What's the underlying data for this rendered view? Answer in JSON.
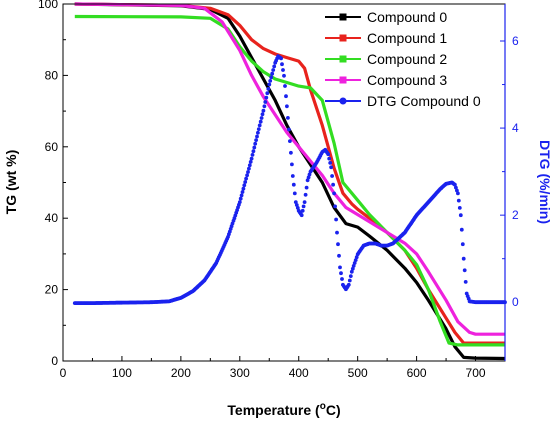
{
  "chart_data": {
    "type": "line",
    "xlabel": "Temperature (°C)",
    "ylabel_left": "TG (wt %)",
    "ylabel_right": "DTG (%/min)",
    "xlim": [
      0,
      750
    ],
    "ylim_left": [
      0,
      100
    ],
    "ylim_right": [
      -1.35,
      6.85
    ],
    "x_ticks": [
      0,
      100,
      200,
      300,
      400,
      500,
      600,
      700
    ],
    "y_left_ticks": [
      0,
      20,
      40,
      60,
      80,
      100
    ],
    "y_right_ticks": [
      0,
      2,
      4,
      6
    ],
    "grid": false,
    "legend_position": "top-right",
    "series": [
      {
        "name": "Compound 0",
        "axis": "left",
        "color": "#000000",
        "marker": "square",
        "x": [
          20,
          200,
          250,
          280,
          300,
          320,
          340,
          360,
          380,
          400,
          420,
          440,
          460,
          480,
          500,
          520,
          550,
          580,
          600,
          620,
          650,
          665,
          680,
          700,
          750
        ],
        "y": [
          100,
          99.5,
          98.5,
          96,
          91,
          85,
          79,
          73,
          66,
          60,
          55,
          50,
          43,
          38.5,
          37.5,
          35,
          31,
          26,
          22,
          17,
          9,
          4,
          1,
          0.8,
          0.7
        ]
      },
      {
        "name": "Compound 1",
        "axis": "left",
        "color": "#e8231d",
        "marker": "square",
        "x": [
          20,
          200,
          250,
          280,
          300,
          320,
          340,
          360,
          380,
          400,
          410,
          420,
          440,
          460,
          475,
          490,
          500,
          520,
          550,
          580,
          600,
          620,
          650,
          665,
          680,
          700,
          750
        ],
        "y": [
          100,
          99.6,
          98.8,
          97,
          94,
          90,
          87.5,
          86,
          85,
          84,
          82,
          76,
          66,
          54,
          47,
          44,
          42.5,
          40,
          36,
          31,
          26,
          20,
          12,
          8,
          5,
          5,
          5
        ]
      },
      {
        "name": "Compound 2",
        "axis": "left",
        "color": "#33dd22",
        "marker": "square",
        "x": [
          20,
          200,
          250,
          280,
          300,
          320,
          340,
          360,
          380,
          400,
          420,
          440,
          460,
          475,
          490,
          500,
          520,
          550,
          580,
          600,
          620,
          640,
          655,
          670,
          700,
          750
        ],
        "y": [
          96.5,
          96.4,
          96,
          93,
          88,
          84,
          81,
          79,
          78,
          77,
          76.5,
          73,
          61,
          50,
          47,
          45,
          41,
          36,
          31,
          27,
          20,
          11,
          5,
          4.5,
          4.5,
          4.5
        ]
      },
      {
        "name": "Compound 3",
        "axis": "left",
        "color": "#ee22dd",
        "marker": "square",
        "x": [
          20,
          200,
          240,
          270,
          300,
          320,
          340,
          360,
          380,
          400,
          420,
          440,
          460,
          480,
          500,
          520,
          550,
          580,
          600,
          620,
          650,
          670,
          690,
          700,
          750
        ],
        "y": [
          100,
          99.6,
          98.8,
          95,
          87,
          80,
          74,
          69,
          64,
          60,
          56,
          52,
          47,
          43,
          41,
          39,
          36,
          33,
          30,
          25,
          17,
          11,
          8,
          7.5,
          7.5
        ]
      },
      {
        "name": "DTG Compound 0",
        "axis": "right",
        "color": "#1a22ee",
        "marker": "circle",
        "x": [
          20,
          50,
          100,
          150,
          180,
          200,
          220,
          240,
          260,
          280,
          300,
          320,
          340,
          350,
          360,
          365,
          370,
          375,
          380,
          385,
          390,
          395,
          400,
          405,
          410,
          415,
          420,
          430,
          440,
          445,
          450,
          455,
          460,
          465,
          470,
          475,
          480,
          485,
          490,
          500,
          510,
          520,
          530,
          540,
          550,
          560,
          580,
          600,
          620,
          640,
          650,
          660,
          665,
          670,
          675,
          680,
          685,
          690,
          700,
          750
        ],
        "y": [
          -0.02,
          -0.02,
          -0.01,
          0.0,
          0.02,
          0.1,
          0.25,
          0.5,
          0.9,
          1.5,
          2.3,
          3.3,
          4.4,
          5.0,
          5.5,
          5.65,
          5.6,
          5.2,
          4.5,
          3.7,
          2.9,
          2.3,
          2.1,
          2.0,
          2.3,
          2.8,
          3.0,
          3.2,
          3.45,
          3.5,
          3.4,
          3.1,
          2.5,
          1.6,
          0.8,
          0.4,
          0.3,
          0.4,
          0.7,
          1.1,
          1.3,
          1.35,
          1.35,
          1.3,
          1.3,
          1.35,
          1.6,
          2.0,
          2.3,
          2.6,
          2.72,
          2.75,
          2.7,
          2.5,
          2.0,
          1.0,
          0.2,
          0.02,
          0.0,
          0.0
        ]
      }
    ]
  }
}
